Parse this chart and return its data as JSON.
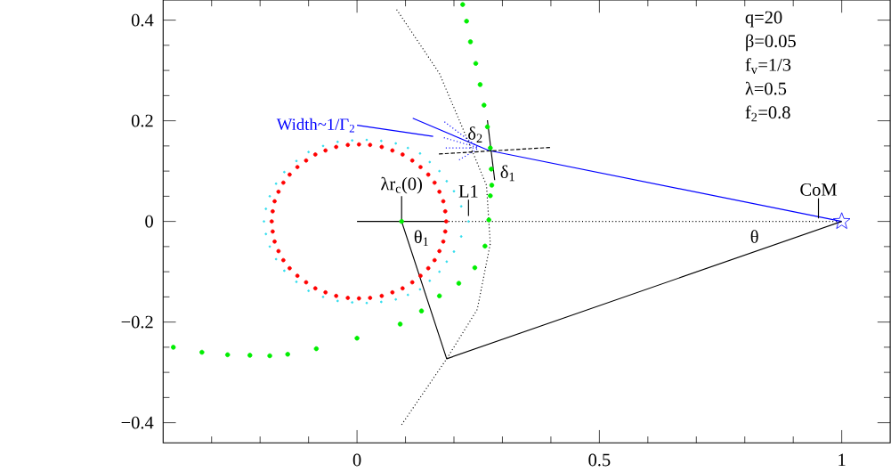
{
  "chart_data": {
    "type": "line",
    "xlim": [
      -0.4,
      1.1
    ],
    "ylim": [
      -0.44,
      0.44
    ],
    "xticks": [
      {
        "value": -0.3,
        "label": null
      },
      {
        "value": -0.2,
        "label": null
      },
      {
        "value": -0.1,
        "label": null
      },
      0,
      {
        "value": 0.1,
        "label": null
      },
      {
        "value": 0.2,
        "label": null
      },
      {
        "value": 0.3,
        "label": null
      },
      {
        "value": 0.4,
        "label": null
      },
      0.5,
      {
        "value": 0.6,
        "label": null
      },
      {
        "value": 0.7,
        "label": null
      },
      {
        "value": 0.8,
        "label": null
      },
      {
        "value": 0.9,
        "label": null
      },
      1
    ],
    "yticks": [
      {
        "value": -0.4,
        "label": "−0.4"
      },
      {
        "value": -0.35,
        "label": null
      },
      {
        "value": -0.3,
        "label": null
      },
      {
        "value": -0.25,
        "label": null
      },
      {
        "value": -0.2,
        "label": "−0.2"
      },
      {
        "value": -0.15,
        "label": null
      },
      {
        "value": -0.1,
        "label": null
      },
      {
        "value": -0.05,
        "label": null
      },
      0,
      {
        "value": 0.05,
        "label": null
      },
      {
        "value": 0.1,
        "label": null
      },
      {
        "value": 0.15,
        "label": null
      },
      0.2,
      {
        "value": 0.25,
        "label": null
      },
      {
        "value": 0.3,
        "label": null
      },
      {
        "value": 0.35,
        "label": null
      },
      0.4
    ],
    "series": [
      {
        "type": "scatter",
        "color": "#ff0000",
        "marker": "circle",
        "x": [
          0.184,
          0.182,
          0.178,
          0.17,
          0.16,
          0.147,
          0.131,
          0.114,
          0.094,
          0.073,
          0.051,
          0.027,
          0.004,
          -0.019,
          -0.043,
          -0.065,
          -0.086,
          -0.105,
          -0.123,
          -0.139,
          -0.152,
          -0.162,
          -0.17,
          -0.174,
          -0.176,
          -0.174,
          -0.17,
          -0.162,
          -0.152,
          -0.139,
          -0.123,
          -0.105,
          -0.086,
          -0.065,
          -0.043,
          -0.019,
          0.004,
          0.027,
          0.051,
          0.073,
          0.094,
          0.114,
          0.131,
          0.147,
          0.16,
          0.17,
          0.178,
          0.182
        ],
        "values": [
          0,
          0.02,
          0.04,
          0.059,
          0.077,
          0.093,
          0.108,
          0.121,
          0.133,
          0.141,
          0.148,
          0.152,
          0.153,
          0.152,
          0.148,
          0.141,
          0.133,
          0.121,
          0.108,
          0.093,
          0.077,
          0.059,
          0.04,
          0.02,
          0,
          -0.02,
          -0.04,
          -0.059,
          -0.077,
          -0.093,
          -0.108,
          -0.121,
          -0.133,
          -0.141,
          -0.148,
          -0.152,
          -0.153,
          -0.152,
          -0.148,
          -0.141,
          -0.133,
          -0.121,
          -0.108,
          -0.093,
          -0.077,
          -0.059,
          -0.04,
          -0.02
        ]
      },
      {
        "type": "scatter",
        "color": "#33ddee",
        "marker": "circle",
        "x": [
          0.23,
          0.215,
          0.2,
          0.185,
          0.17,
          0.15,
          0.13,
          0.105,
          0.08,
          0.05,
          0.02,
          -0.01,
          -0.04,
          -0.07,
          -0.1,
          -0.125,
          -0.15,
          -0.167,
          -0.18,
          -0.188,
          -0.192,
          -0.188,
          -0.18,
          -0.167,
          -0.15,
          -0.125,
          -0.1,
          -0.07,
          -0.04,
          -0.01,
          0.02,
          0.05,
          0.08,
          0.105,
          0.13,
          0.15,
          0.17,
          0.185,
          0.2,
          0.215
        ],
        "values": [
          0,
          0.03,
          0.06,
          0.08,
          0.1,
          0.118,
          0.135,
          0.146,
          0.155,
          0.16,
          0.162,
          0.161,
          0.158,
          0.15,
          0.138,
          0.12,
          0.098,
          0.075,
          0.05,
          0.025,
          0,
          -0.025,
          -0.05,
          -0.075,
          -0.098,
          -0.12,
          -0.138,
          -0.15,
          -0.158,
          -0.161,
          -0.162,
          -0.16,
          -0.155,
          -0.146,
          -0.135,
          -0.118,
          -0.1,
          -0.08,
          -0.06,
          -0.03
        ]
      },
      {
        "type": "scatter",
        "color": "#00ee00",
        "marker": "circle",
        "x": [
          0.218,
          0.226,
          0.234,
          0.245,
          0.254,
          0.262,
          0.269,
          0.275,
          0.277,
          0.278,
          0.275,
          0.272,
          0.264,
          0.243,
          0.21,
          0.17,
          0.133,
          0.089,
          0.0,
          -0.084,
          -0.143,
          -0.18,
          -0.221,
          -0.267,
          -0.32,
          -0.379
        ],
        "values": [
          0.431,
          0.398,
          0.357,
          0.314,
          0.272,
          0.231,
          0.188,
          0.146,
          0.104,
          0.072,
          0.051,
          0.003,
          -0.049,
          -0.092,
          -0.123,
          -0.148,
          -0.178,
          -0.204,
          -0.232,
          -0.253,
          -0.264,
          -0.267,
          -0.266,
          -0.265,
          -0.26,
          -0.25
        ]
      },
      {
        "color": "#000000",
        "line_style": "solid",
        "x": [
          0,
          0.184
        ],
        "values": [
          0,
          0
        ]
      },
      {
        "color": "#000000",
        "line_style": "dotted",
        "x": [
          0.184,
          1
        ],
        "values": [
          0,
          0
        ]
      },
      {
        "type": "scatter",
        "color": "#00ee00",
        "marker": "circle",
        "x": [
          0.092
        ],
        "values": [
          0
        ]
      },
      {
        "type": "scatter",
        "color": "#0000ff",
        "marker": "star",
        "x": [
          1
        ],
        "values": [
          0
        ]
      },
      {
        "color": "#0000ff",
        "line_style": "solid",
        "x": [
          1,
          0.272,
          0.115
        ],
        "values": [
          0,
          0.141,
          0.205
        ]
      },
      {
        "name": "Width~1/Γ$_{2}$",
        "color": "#0000ff",
        "line_style": "solid",
        "x": [
          0,
          0.157
        ],
        "values": [
          0.191,
          0.169
        ]
      },
      {
        "color": "#0000ff",
        "line_style": "dotted",
        "x": [
          0.252,
          0.179
        ],
        "values": [
          0.146,
          0.199
        ]
      },
      {
        "color": "#0000ff",
        "line_style": "dotted",
        "x": [
          0.252,
          0.177
        ],
        "values": [
          0.146,
          0.167
        ]
      },
      {
        "color": "#0000ff",
        "line_style": "dotted",
        "x": [
          0.252,
          0.179
        ],
        "values": [
          0.146,
          0.146
        ]
      },
      {
        "color": "#0000ff",
        "line_style": "dotted",
        "x": [
          0.252,
          0.21
        ],
        "values": [
          0.146,
          0.122
        ]
      },
      {
        "color": "#000000",
        "line_style": "dashed",
        "x": [
          0.169,
          0.4
        ],
        "values": [
          0.134,
          0.147
        ]
      },
      {
        "color": "#000000",
        "line_style": "solid",
        "x": [
          0.269,
          0.284
        ],
        "values": [
          0.201,
          0.082
        ]
      },
      {
        "color": "#000000",
        "line_style": "solid",
        "x": [
          0.092,
          0.185,
          1
        ],
        "values": [
          0,
          -0.273,
          0
        ]
      },
      {
        "color": "#000000",
        "line_style": "dotted",
        "x": [
          0.079,
          0.17,
          0.226,
          0.267,
          0.275,
          0.248,
          0.185,
          0.092
        ],
        "values": [
          0.425,
          0.294,
          0.167,
          0.072,
          -0.044,
          -0.175,
          -0.273,
          -0.404
        ]
      },
      {
        "color": "#000000",
        "line_style": "solid",
        "x": [
          0.092,
          0.092
        ],
        "values": [
          0,
          0.05
        ]
      },
      {
        "color": "#000000",
        "line_style": "solid",
        "x": [
          0.23,
          0.23
        ],
        "values": [
          0.011,
          0.043
        ]
      },
      {
        "color": "#000000",
        "line_style": "solid",
        "x": [
          0.952,
          0.952
        ],
        "values": [
          0.006,
          0.046
        ]
      }
    ],
    "annotations": [
      "q=20",
      "β=0.05",
      "f$_{v}$=1/3",
      "λ=0.5",
      "f$_{2}$=0.8",
      {
        "text": "λr$_{c}$(0)",
        "x": 0.092,
        "y": 0.05
      },
      {
        "text": "L1",
        "x": 0.23,
        "y": 0.043
      },
      {
        "text": "CoM",
        "x": 0.952,
        "y": 0.046
      },
      {
        "text": "δ$_{2}$",
        "x": 0.244,
        "y": 0.152
      },
      "δ$_{1}$",
      "θ$_{1}$",
      "θ"
    ]
  }
}
